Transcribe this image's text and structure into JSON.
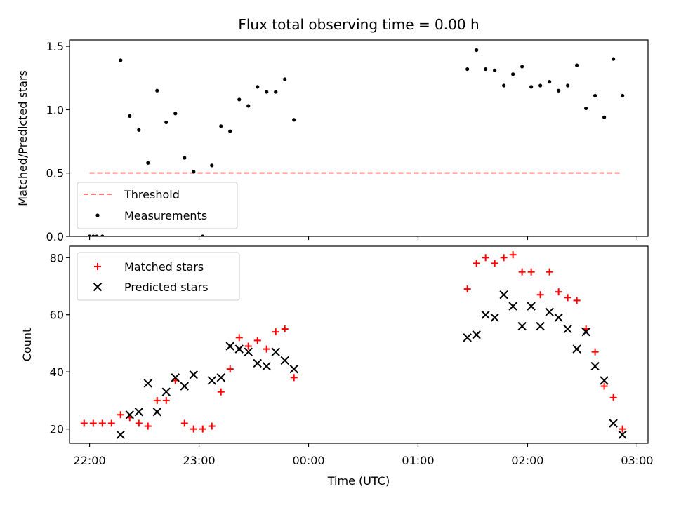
{
  "chart_data": [
    {
      "type": "scatter",
      "title": "Flux total observing time = 0.00 h",
      "xlabel": "",
      "ylabel": "Matched/Predicted stars",
      "ylim": [
        0,
        1.55
      ],
      "yticks": [
        0.0,
        0.5,
        1.0,
        1.5
      ],
      "ytick_labels": [
        "0.0",
        "0.5",
        "1.0",
        "1.5"
      ],
      "xlim": [
        "21:49",
        "03:06"
      ],
      "legend_position": "lower-left",
      "threshold": {
        "name": "Threshold",
        "value": 0.5,
        "x_start": "22:00",
        "x_end": "02:52",
        "color": "#ff7f7f",
        "style": "dashed"
      },
      "series": [
        {
          "name": "Measurements",
          "color": "#000000",
          "marker": "dot",
          "points": [
            [
              "22:00",
              0.0
            ],
            [
              "22:02",
              0.0
            ],
            [
              "22:04",
              0.0
            ],
            [
              "22:07",
              0.0
            ],
            [
              "22:17",
              1.39
            ],
            [
              "22:22",
              0.95
            ],
            [
              "22:27",
              0.84
            ],
            [
              "22:32",
              0.58
            ],
            [
              "22:37",
              1.15
            ],
            [
              "22:42",
              0.9
            ],
            [
              "22:47",
              0.97
            ],
            [
              "22:52",
              0.62
            ],
            [
              "22:57",
              0.51
            ],
            [
              "23:02",
              0.0
            ],
            [
              "23:07",
              0.56
            ],
            [
              "23:12",
              0.87
            ],
            [
              "23:17",
              0.83
            ],
            [
              "23:22",
              1.08
            ],
            [
              "23:27",
              1.03
            ],
            [
              "23:32",
              1.18
            ],
            [
              "23:37",
              1.14
            ],
            [
              "23:42",
              1.14
            ],
            [
              "23:47",
              1.24
            ],
            [
              "23:52",
              0.92
            ],
            [
              "01:27",
              1.32
            ],
            [
              "01:32",
              1.47
            ],
            [
              "01:37",
              1.32
            ],
            [
              "01:42",
              1.31
            ],
            [
              "01:47",
              1.19
            ],
            [
              "01:52",
              1.28
            ],
            [
              "01:57",
              1.34
            ],
            [
              "02:02",
              1.18
            ],
            [
              "02:07",
              1.19
            ],
            [
              "02:12",
              1.22
            ],
            [
              "02:17",
              1.15
            ],
            [
              "02:22",
              1.19
            ],
            [
              "02:27",
              1.35
            ],
            [
              "02:32",
              1.01
            ],
            [
              "02:37",
              1.11
            ],
            [
              "02:42",
              0.94
            ],
            [
              "02:47",
              1.4
            ],
            [
              "02:52",
              1.11
            ]
          ]
        }
      ]
    },
    {
      "type": "scatter",
      "title": "",
      "xlabel": "Time (UTC)",
      "ylabel": "Count",
      "ylim": [
        15,
        84
      ],
      "yticks": [
        20,
        40,
        60,
        80
      ],
      "ytick_labels": [
        "20",
        "40",
        "60",
        "80"
      ],
      "xlim": [
        "21:49",
        "03:06"
      ],
      "xticks": [
        "22:00",
        "23:00",
        "00:00",
        "01:00",
        "02:00",
        "03:00"
      ],
      "legend_position": "upper-left",
      "series": [
        {
          "name": "Matched stars",
          "color": "#ff0000",
          "marker": "plus",
          "points": [
            [
              "21:57",
              22
            ],
            [
              "22:02",
              22
            ],
            [
              "22:07",
              22
            ],
            [
              "22:12",
              22
            ],
            [
              "22:17",
              25
            ],
            [
              "22:22",
              24
            ],
            [
              "22:27",
              22
            ],
            [
              "22:32",
              21
            ],
            [
              "22:37",
              30
            ],
            [
              "22:42",
              30
            ],
            [
              "22:47",
              37
            ],
            [
              "22:52",
              22
            ],
            [
              "22:57",
              20
            ],
            [
              "23:02",
              20
            ],
            [
              "23:07",
              21
            ],
            [
              "23:12",
              33
            ],
            [
              "23:17",
              41
            ],
            [
              "23:22",
              52
            ],
            [
              "23:27",
              49
            ],
            [
              "23:32",
              51
            ],
            [
              "23:37",
              48
            ],
            [
              "23:42",
              54
            ],
            [
              "23:47",
              55
            ],
            [
              "23:52",
              38
            ],
            [
              "01:27",
              69
            ],
            [
              "01:32",
              78
            ],
            [
              "01:37",
              80
            ],
            [
              "01:42",
              78
            ],
            [
              "01:47",
              80
            ],
            [
              "01:52",
              81
            ],
            [
              "01:57",
              75
            ],
            [
              "02:02",
              75
            ],
            [
              "02:07",
              67
            ],
            [
              "02:12",
              75
            ],
            [
              "02:17",
              68
            ],
            [
              "02:22",
              66
            ],
            [
              "02:27",
              65
            ],
            [
              "02:32",
              55
            ],
            [
              "02:37",
              47
            ],
            [
              "02:42",
              35
            ],
            [
              "02:47",
              31
            ],
            [
              "02:52",
              20
            ]
          ]
        },
        {
          "name": "Predicted stars",
          "color": "#000000",
          "marker": "x",
          "points": [
            [
              "22:17",
              18
            ],
            [
              "22:22",
              25
            ],
            [
              "22:27",
              26
            ],
            [
              "22:32",
              36
            ],
            [
              "22:37",
              26
            ],
            [
              "22:42",
              33
            ],
            [
              "22:47",
              38
            ],
            [
              "22:52",
              35
            ],
            [
              "22:57",
              39
            ],
            [
              "23:07",
              37
            ],
            [
              "23:12",
              38
            ],
            [
              "23:17",
              49
            ],
            [
              "23:22",
              48
            ],
            [
              "23:27",
              47
            ],
            [
              "23:32",
              43
            ],
            [
              "23:37",
              42
            ],
            [
              "23:42",
              47
            ],
            [
              "23:47",
              44
            ],
            [
              "23:52",
              41
            ],
            [
              "01:27",
              52
            ],
            [
              "01:32",
              53
            ],
            [
              "01:37",
              60
            ],
            [
              "01:42",
              59
            ],
            [
              "01:47",
              67
            ],
            [
              "01:52",
              63
            ],
            [
              "01:57",
              56
            ],
            [
              "02:02",
              63
            ],
            [
              "02:07",
              56
            ],
            [
              "02:12",
              61
            ],
            [
              "02:17",
              59
            ],
            [
              "02:22",
              55
            ],
            [
              "02:27",
              48
            ],
            [
              "02:32",
              54
            ],
            [
              "02:37",
              42
            ],
            [
              "02:42",
              37
            ],
            [
              "02:47",
              22
            ],
            [
              "02:52",
              18
            ]
          ]
        }
      ]
    }
  ]
}
